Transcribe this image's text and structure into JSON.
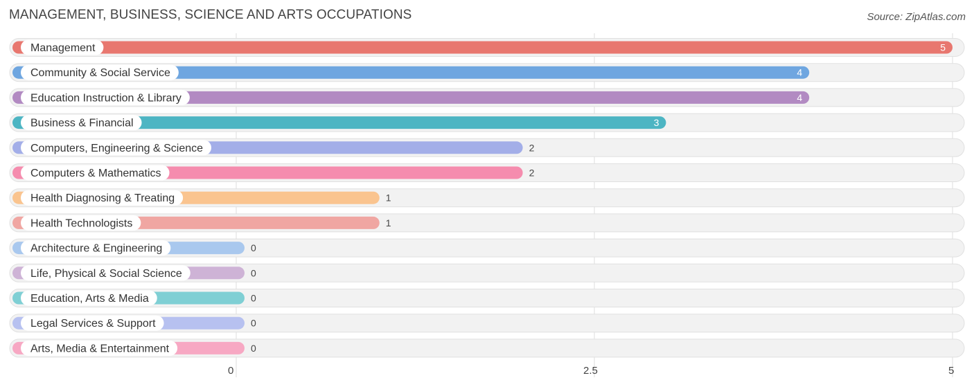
{
  "title": "MANAGEMENT, BUSINESS, SCIENCE AND ARTS OCCUPATIONS",
  "source": "Source: ZipAtlas.com",
  "chart_data": {
    "type": "bar",
    "orientation": "horizontal",
    "categories": [
      "Management",
      "Community & Social Service",
      "Education Instruction & Library",
      "Business & Financial",
      "Computers, Engineering & Science",
      "Computers & Mathematics",
      "Health Diagnosing & Treating",
      "Health Technologists",
      "Architecture & Engineering",
      "Life, Physical & Social Science",
      "Education, Arts & Media",
      "Legal Services & Support",
      "Arts, Media & Entertainment"
    ],
    "values": [
      5,
      4,
      4,
      3,
      2,
      2,
      1,
      1,
      0,
      0,
      0,
      0,
      0
    ],
    "colors": [
      "#e8776f",
      "#6fa6e0",
      "#b28ac2",
      "#4db5c3",
      "#a3aee8",
      "#f58cae",
      "#fac48f",
      "#f0a6a2",
      "#a9c8ee",
      "#ceb3d6",
      "#7fcfd4",
      "#b7c1f0",
      "#f7a8c3"
    ],
    "xlim": [
      0,
      5
    ],
    "xticks": [
      0,
      2.5,
      5
    ],
    "xtick_labels": [
      "0",
      "2.5",
      "5"
    ],
    "grid": true
  }
}
